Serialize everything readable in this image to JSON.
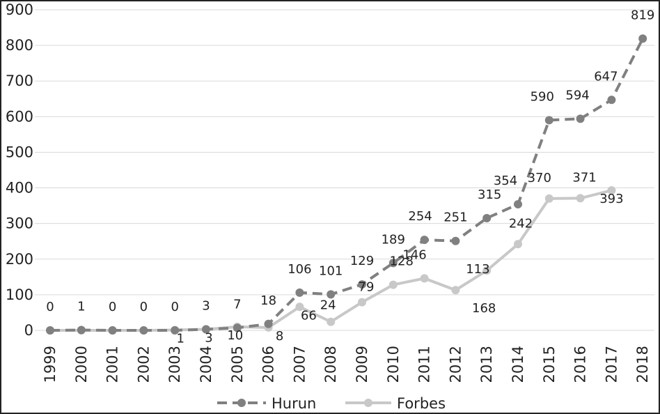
{
  "chart_data": {
    "type": "line",
    "title": "",
    "xlabel": "",
    "ylabel": "",
    "ylim": [
      0,
      900
    ],
    "yticks": [
      0,
      100,
      200,
      300,
      400,
      500,
      600,
      700,
      800,
      900
    ],
    "ytick_labels": [
      "0",
      "100",
      "200",
      "300",
      "400",
      "500",
      "600",
      "700",
      "800",
      "900"
    ],
    "grid": true,
    "legend_position": "bottom",
    "categories": [
      "1999",
      "2000",
      "2001",
      "2002",
      "2003",
      "2004",
      "2005",
      "2006",
      "2007",
      "2008",
      "2009",
      "2010",
      "2011",
      "2012",
      "2013",
      "2014",
      "2015",
      "2016",
      "2017",
      "2018"
    ],
    "series": [
      {
        "name": "Hurun",
        "style": "dashed",
        "color": "#808080",
        "values": [
          0,
          1,
          0,
          0,
          0,
          3,
          7,
          18,
          106,
          101,
          129,
          189,
          254,
          251,
          315,
          354,
          590,
          594,
          647,
          819
        ]
      },
      {
        "name": "Forbes",
        "style": "solid",
        "color": "#c8c8c8",
        "values": [
          0,
          0,
          0,
          0,
          1,
          3,
          10,
          8,
          66,
          24,
          79,
          128,
          146,
          113,
          168,
          242,
          370,
          371,
          393,
          null
        ]
      }
    ]
  }
}
